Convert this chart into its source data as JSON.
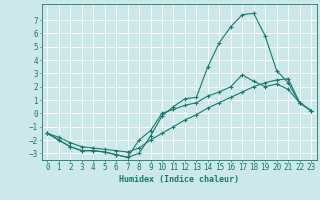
{
  "xlabel": "Humidex (Indice chaleur)",
  "ylabel": "",
  "background_color": "#cce8e8",
  "grid_color": "#ffffff",
  "line_color": "#1a7a6e",
  "xlim": [
    -0.5,
    23.5
  ],
  "ylim": [
    -3.5,
    8.2
  ],
  "yticks": [
    -3,
    -2,
    -1,
    0,
    1,
    2,
    3,
    4,
    5,
    6,
    7
  ],
  "xticks": [
    0,
    1,
    2,
    3,
    4,
    5,
    6,
    7,
    8,
    9,
    10,
    11,
    12,
    13,
    14,
    15,
    16,
    17,
    18,
    19,
    20,
    21,
    22,
    23
  ],
  "line1_x": [
    0,
    1,
    2,
    3,
    4,
    5,
    6,
    7,
    8,
    9,
    10,
    11,
    12,
    13,
    14,
    15,
    16,
    17,
    18,
    19,
    20,
    21,
    22,
    23
  ],
  "line1_y": [
    -1.5,
    -2.0,
    -2.5,
    -2.8,
    -2.8,
    -2.9,
    -3.1,
    -3.3,
    -3.0,
    -1.7,
    -0.2,
    0.5,
    1.1,
    1.2,
    3.5,
    5.3,
    6.5,
    7.4,
    7.5,
    5.8,
    3.2,
    2.3,
    0.8,
    0.2
  ],
  "line2_x": [
    0,
    1,
    2,
    3,
    4,
    5,
    6,
    7,
    8,
    9,
    10,
    11,
    12,
    13,
    14,
    15,
    16,
    17,
    18,
    19,
    20,
    21,
    22,
    23
  ],
  "line2_y": [
    -1.5,
    -2.0,
    -2.5,
    -2.8,
    -2.8,
    -2.9,
    -3.1,
    -3.3,
    -2.0,
    -1.3,
    0.0,
    0.3,
    0.6,
    0.8,
    1.3,
    1.6,
    2.0,
    2.9,
    2.4,
    2.0,
    2.2,
    1.8,
    0.8,
    0.2
  ],
  "line3_x": [
    0,
    1,
    2,
    3,
    4,
    5,
    6,
    7,
    8,
    9,
    10,
    11,
    12,
    13,
    14,
    15,
    16,
    17,
    18,
    19,
    20,
    21,
    22,
    23
  ],
  "line3_y": [
    -1.5,
    -1.8,
    -2.2,
    -2.5,
    -2.6,
    -2.7,
    -2.8,
    -2.9,
    -2.6,
    -2.0,
    -1.5,
    -1.0,
    -0.5,
    -0.1,
    0.4,
    0.8,
    1.2,
    1.6,
    2.0,
    2.3,
    2.5,
    2.6,
    0.8,
    0.2
  ],
  "xlabel_fontsize": 6,
  "tick_labelsize": 5.5,
  "linewidth": 0.8,
  "markersize": 3
}
